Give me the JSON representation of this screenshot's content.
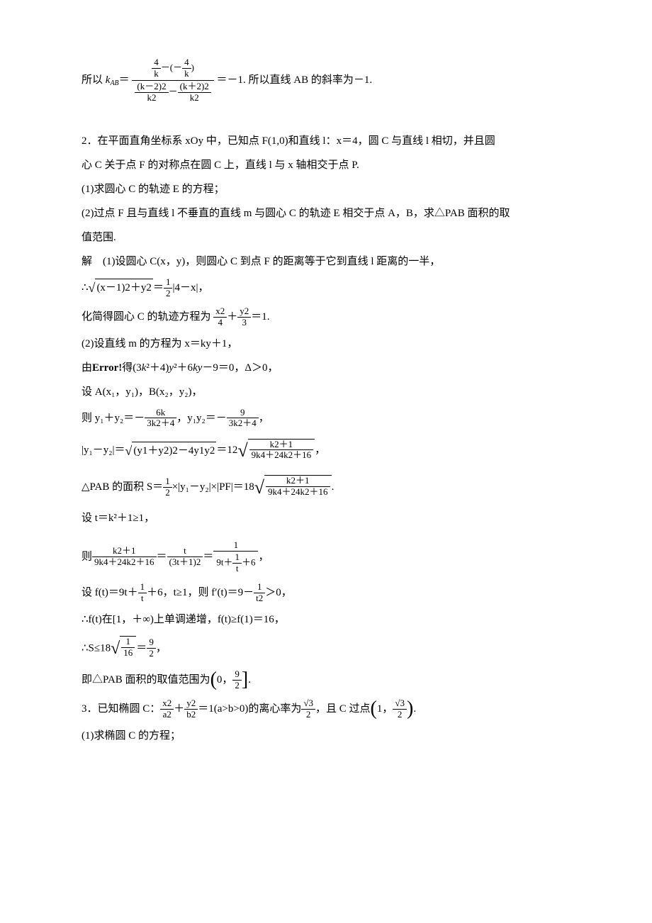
{
  "colors": {
    "text": "#000000",
    "background": "#ffffff",
    "rule": "#000000"
  },
  "typography": {
    "body_font": "SimSun",
    "body_size_pt": 11,
    "sub_size_pt": 8
  },
  "p1": {
    "prefix": "所以 ",
    "kab": "k<sub>AB</sub>＝",
    "outer_num_l": "4",
    "outer_num_l_den": "k",
    "outer_num_op": "－(－",
    "outer_num_r": "4",
    "outer_num_r_den": "k",
    "outer_num_close": ")",
    "den_l_num": "(k－2)2",
    "den_l_den": "k2",
    "den_op": "－",
    "den_r_num": "(k＋2)2",
    "den_r_den": "k2",
    "tail": "＝－1. 所以直线 AB 的斜率为－1."
  },
  "p2": {
    "l1": "2．在平面直角坐标系 xOy 中，已知点 F(1,0)和直线 l：x＝4，圆 C 与直线 l 相切，并且圆",
    "l2": "心 C 关于点 F 的对称点在圆 C 上，直线 l 与 x 轴相交于点 P.",
    "l3": "(1)求圆心 C 的轨迹 E 的方程；",
    "l4": "(2)过点 F 且与直线 l 不垂直的直线 m 与圆心 C 的轨迹 E 相交于点 A，B，求△PAB 面积的取",
    "l5": "值范围.",
    "l6": "解　(1)设圆心 C(x，y)，则圆心 C 到点 F 的距离等于它到直线 l 距离的一半，",
    "l7_pre": "∴",
    "l7_rad": "(x－1)2＋y2",
    "l7_eq": "＝",
    "l7_frac_n": "1",
    "l7_frac_d": "2",
    "l7_tail": "|4－x|，",
    "l8_pre": "化简得圆心 C 的轨迹方程为",
    "l8_f1n": "x2",
    "l8_f1d": "4",
    "l8_plus": "＋",
    "l8_f2n": "y2",
    "l8_f2d": "3",
    "l8_tail": "＝1.",
    "l9": "(2)设直线 m 的方程为 x＝ky＋1，",
    "l10": "由Error!得(3k²＋4)y²＋6ky－9＝0，Δ＞0，",
    "l11": "设 A(x₁，y₁)，B(x₂，y₂)，",
    "l12_pre": "则 y₁＋y₂＝－",
    "l12_f1n": "6k",
    "l12_f1d": "3k2＋4",
    "l12_mid": "，y₁y₂＝－",
    "l12_f2n": "9",
    "l12_f2d": "3k2＋4",
    "l12_tail": "，",
    "l13_pre": "|y₁－y₂|＝",
    "l13_r1": "(y1＋y2)2－4y1y2",
    "l13_eq": "＝12",
    "l13_r2n": "k2＋1",
    "l13_r2d": "9k4＋24k2＋16",
    "l13_tail": "，",
    "l14_pre": "△PAB 的面积 S＝",
    "l14_half_n": "1",
    "l14_half_d": "2",
    "l14_mid": "×|y₁－y₂|×|PF|＝18",
    "l14_rn": "k2＋1",
    "l14_rd": "9k4＋24k2＋16",
    "l14_tail": ".",
    "l15": "设 t＝k²＋1≥1，",
    "l16_pre": "则",
    "l16_f1n": "k2＋1",
    "l16_f1d": "9k4＋24k2＋16",
    "l16_eq1": "＝",
    "l16_f2n": "t",
    "l16_f2d": "(3t＋1)2",
    "l16_eq2": "＝",
    "l16_f3top_n": "1",
    "l16_f3bot_pre": "9t＋",
    "l16_f3bot_fn": "1",
    "l16_f3bot_fd": "t",
    "l16_f3bot_tail": "＋6",
    "l16_tail": "，",
    "l17_pre": "设 f(t)＝9t＋",
    "l17_f1n": "1",
    "l17_f1d": "t",
    "l17_mid": "＋6，t≥1，则 f′(t)＝9－",
    "l17_f2n": "1",
    "l17_f2d": "t2",
    "l17_tail": "＞0，",
    "l18": "∴f(t)在[1，＋∞)上单调递增，f(t)≥f(1)＝16，",
    "l19_pre": "∴S≤18",
    "l19_rn": "1",
    "l19_rd": "16",
    "l19_eq": "＝",
    "l19_f2n": "9",
    "l19_f2d": "2",
    "l19_tail": "，",
    "l20_pre": "即△PAB 面积的取值范围为",
    "l20_int_l": "0，",
    "l20_int_rn": "9",
    "l20_int_rd": "2",
    "l20_tail": "."
  },
  "p3": {
    "l1_pre": "3．已知椭圆 C：",
    "l1_f1n": "x2",
    "l1_f1d": "a2",
    "l1_plus": "＋",
    "l1_f2n": "y2",
    "l1_f2d": "b2",
    "l1_mid": "＝1(a>b>0)的离心率为",
    "l1_e_n": "√3",
    "l1_e_d": "2",
    "l1_mid2": "，且 C 过点",
    "l1_pt_x": "1，",
    "l1_pt_yn": "√3",
    "l1_pt_yd": "2",
    "l1_tail": ".",
    "l2": "(1)求椭圆 C 的方程；"
  }
}
